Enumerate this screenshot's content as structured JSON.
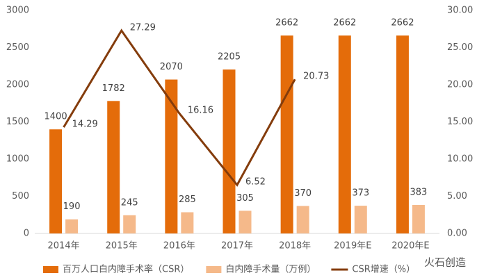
{
  "chart_data": {
    "type": "bar_line",
    "categories": [
      "2014年",
      "2015年",
      "2016年",
      "2017年",
      "2018年",
      "2019年E",
      "2020年E"
    ],
    "series": [
      {
        "name": "百万人口白内障手术率（CSR）",
        "type": "bar",
        "color": "#e46c0a",
        "values": [
          1400,
          1782,
          2070,
          2205,
          2662,
          2662,
          2662
        ]
      },
      {
        "name": "白内障手术量（万例）",
        "type": "bar",
        "color": "#f5b98a",
        "values": [
          190,
          245,
          285,
          305,
          370,
          373,
          383
        ]
      },
      {
        "name": "CSR增速（%）",
        "type": "line",
        "axis": "y2",
        "color": "#843c0c",
        "values": [
          14.29,
          27.29,
          16.16,
          6.52,
          20.73,
          null,
          null
        ]
      }
    ],
    "ylim": [
      0,
      3000
    ],
    "yticks": [
      0,
      500,
      1000,
      1500,
      2000,
      2500,
      3000
    ],
    "y2lim": [
      0,
      30
    ],
    "y2ticks": [
      {
        "value": 0,
        "label": "0.00"
      },
      {
        "value": 5,
        "label": "5.00"
      },
      {
        "value": 10,
        "label": "10.00"
      },
      {
        "value": 15,
        "label": "15.00"
      },
      {
        "value": 20,
        "label": "20.00"
      },
      {
        "value": 25,
        "label": "25.00"
      },
      {
        "value": 30,
        "label": "30.00"
      }
    ],
    "legend": "bottom",
    "watermark": "火石创造"
  }
}
